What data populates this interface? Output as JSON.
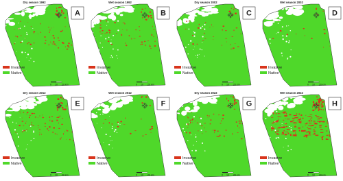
{
  "panels": [
    {
      "title": "Dry season 1992",
      "letter": "A"
    },
    {
      "title": "Wet season 1992",
      "letter": "B"
    },
    {
      "title": "Dry season 2002",
      "letter": "C"
    },
    {
      "title": "Wet season 2002",
      "letter": "D"
    },
    {
      "title": "Dry season 2012",
      "letter": "E"
    },
    {
      "title": "Wet season 2012",
      "letter": "F"
    },
    {
      "title": "Dry season 2022",
      "letter": "G"
    },
    {
      "title": "Wet season 2022",
      "letter": "H"
    }
  ],
  "legend": {
    "invasive": "Invasive",
    "native": "Native"
  },
  "scale": [
    "0",
    "10",
    "20 km"
  ]
}
